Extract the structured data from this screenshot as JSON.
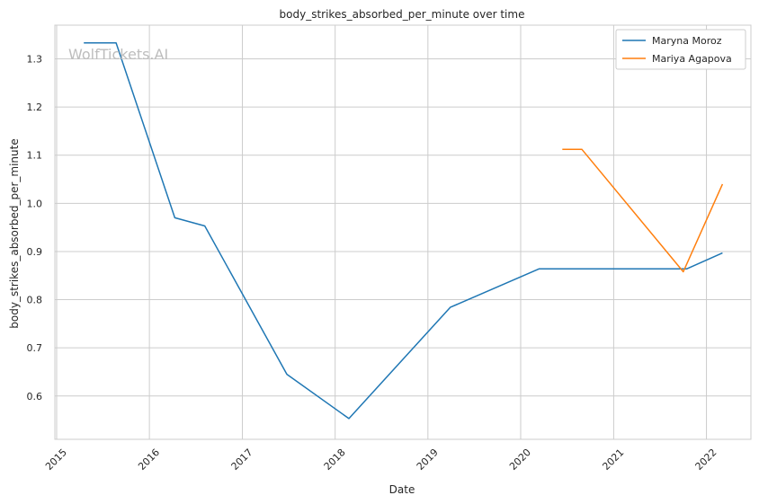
{
  "watermark": "WolfTickets.AI",
  "chart_data": {
    "type": "line",
    "title": "body_strikes_absorbed_per_minute over time",
    "xlabel": "Date",
    "ylabel": "body_strikes_absorbed_per_minute",
    "x_tick_labels": [
      "2015",
      "2016",
      "2017",
      "2018",
      "2019",
      "2020",
      "2021",
      "2022"
    ],
    "y_tick_labels": [
      "0.6",
      "0.7",
      "0.8",
      "0.9",
      "1.0",
      "1.1",
      "1.2",
      "1.3"
    ],
    "x_range": [
      "2014-12-25",
      "2022-06-25"
    ],
    "y_range": [
      0.51,
      1.37
    ],
    "grid": true,
    "legend_position": "top-right",
    "colors": {
      "Maryna Moroz": "#1f77b4",
      "Mariya Agapova": "#ff7f0e"
    },
    "series": [
      {
        "name": "Maryna Moroz",
        "points": [
          {
            "x": "2015-04-18",
            "y": 1.333
          },
          {
            "x": "2015-08-23",
            "y": 1.333
          },
          {
            "x": "2016-04-10",
            "y": 0.97
          },
          {
            "x": "2016-08-06",
            "y": 0.953
          },
          {
            "x": "2017-06-25",
            "y": 0.645
          },
          {
            "x": "2018-02-24",
            "y": 0.553
          },
          {
            "x": "2019-03-30",
            "y": 0.784
          },
          {
            "x": "2020-03-14",
            "y": 0.864
          },
          {
            "x": "2021-10-16",
            "y": 0.864
          },
          {
            "x": "2022-03-05",
            "y": 0.897
          }
        ]
      },
      {
        "name": "Mariya Agapova",
        "points": [
          {
            "x": "2020-06-13",
            "y": 1.112
          },
          {
            "x": "2020-08-29",
            "y": 1.112
          },
          {
            "x": "2021-10-02",
            "y": 0.858
          },
          {
            "x": "2022-03-05",
            "y": 1.04
          }
        ]
      }
    ]
  }
}
